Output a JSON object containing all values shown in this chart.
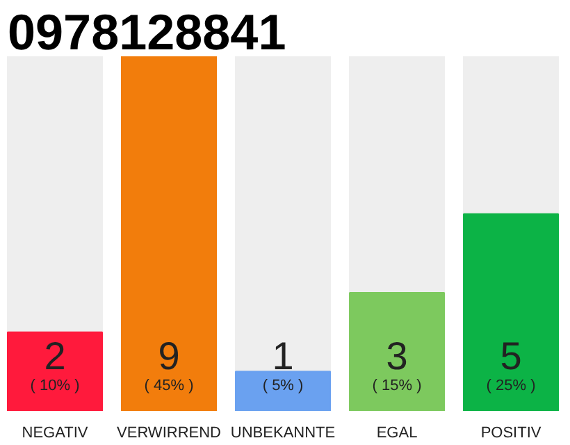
{
  "chart_data": {
    "type": "bar",
    "title": "0978128841",
    "categories": [
      "NEGATIV",
      "VERWIRREND",
      "UNBEKANNTE",
      "EGAL",
      "POSITIV"
    ],
    "values": [
      2,
      9,
      1,
      3,
      5
    ],
    "colors": [
      "#ff1a3c",
      "#f27d0c",
      "#6aa1f0",
      "#7dc95e",
      "#0cb346"
    ],
    "ylim": [
      0,
      9
    ],
    "data_labels": true,
    "grid": false,
    "annotations": [
      "( 10% )",
      "( 45% )",
      "( 5% )",
      "( 15% )",
      "( 25% )"
    ]
  }
}
